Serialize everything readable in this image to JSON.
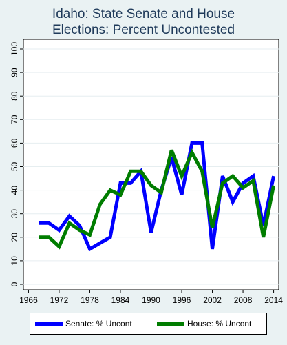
{
  "title_line1": "Idaho: State Senate and House",
  "title_line2": "Elections: Percent Uncontested",
  "colors": {
    "background": "#eaf2f3",
    "plot_area": "#ffffff",
    "gridline": "#e6eef0",
    "senate": "#0000ff",
    "house": "#007d00"
  },
  "chart_data": {
    "type": "line",
    "title": "Idaho: State Senate and House Elections: Percent Uncontested",
    "xlabel": "",
    "ylabel": "",
    "xlim": [
      1965,
      2015
    ],
    "ylim": [
      0,
      100
    ],
    "x_ticks": [
      1966,
      1972,
      1978,
      1984,
      1990,
      1996,
      2002,
      2008,
      2014
    ],
    "y_ticks": [
      0,
      10,
      20,
      30,
      40,
      50,
      60,
      70,
      80,
      90,
      100
    ],
    "grid": true,
    "legend_position": "bottom",
    "series": [
      {
        "name": "Senate: % Uncont",
        "color": "#0000ff",
        "x": [
          1968,
          1970,
          1972,
          1974,
          1976,
          1978,
          1980,
          1982,
          1984,
          1986,
          1988,
          1990,
          1992,
          1994,
          1996,
          1998,
          2000,
          2002,
          2004,
          2006,
          2008,
          2010,
          2012,
          2014
        ],
        "values": [
          26,
          26,
          23,
          29,
          25,
          15,
          17.5,
          20,
          43,
          43,
          48,
          22,
          40,
          54,
          38,
          60,
          60,
          15,
          46,
          35,
          43,
          46,
          25,
          46
        ]
      },
      {
        "name": "House: % Uncont",
        "color": "#007d00",
        "x": [
          1968,
          1970,
          1972,
          1974,
          1976,
          1978,
          1980,
          1982,
          1984,
          1986,
          1988,
          1990,
          1992,
          1994,
          1996,
          1998,
          2000,
          2002,
          2004,
          2006,
          2008,
          2010,
          2012,
          2014
        ],
        "values": [
          20,
          20,
          16,
          26,
          23,
          21,
          34,
          40,
          38,
          48,
          48,
          42,
          39,
          57,
          46,
          56,
          48,
          24,
          43,
          46,
          41,
          44,
          20,
          42
        ]
      }
    ]
  }
}
